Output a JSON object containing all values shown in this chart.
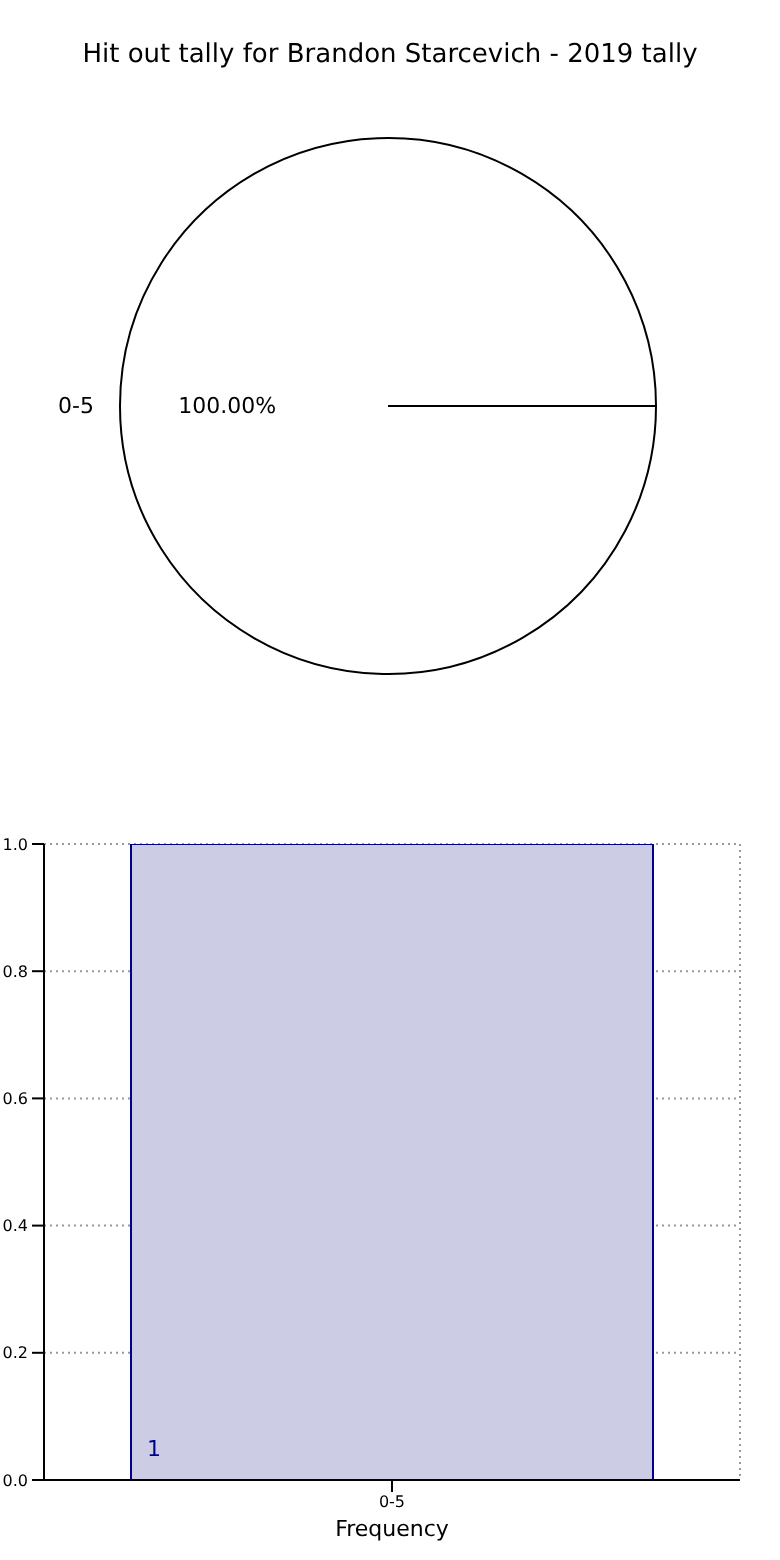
{
  "chart_data": [
    {
      "type": "pie",
      "title": "Hit out tally for Brandon Starcevich - 2019 tally",
      "categories": [
        "0-5"
      ],
      "values": [
        100
      ],
      "colors": [
        "#ffffff"
      ],
      "value_labels": [
        "100.00%"
      ]
    },
    {
      "type": "bar",
      "xlabel": "Frequency",
      "categories": [
        "0-5"
      ],
      "values": [
        1
      ],
      "color": "#ccccE5",
      "value_labels": [
        "1"
      ],
      "ylim": [
        0,
        1
      ],
      "yticks": [
        {
          "value": 0,
          "label": "0.0"
        },
        0.2,
        0.4,
        0.6,
        0.8,
        {
          "value": 1,
          "label": "1.0"
        }
      ],
      "grid": true
    }
  ]
}
